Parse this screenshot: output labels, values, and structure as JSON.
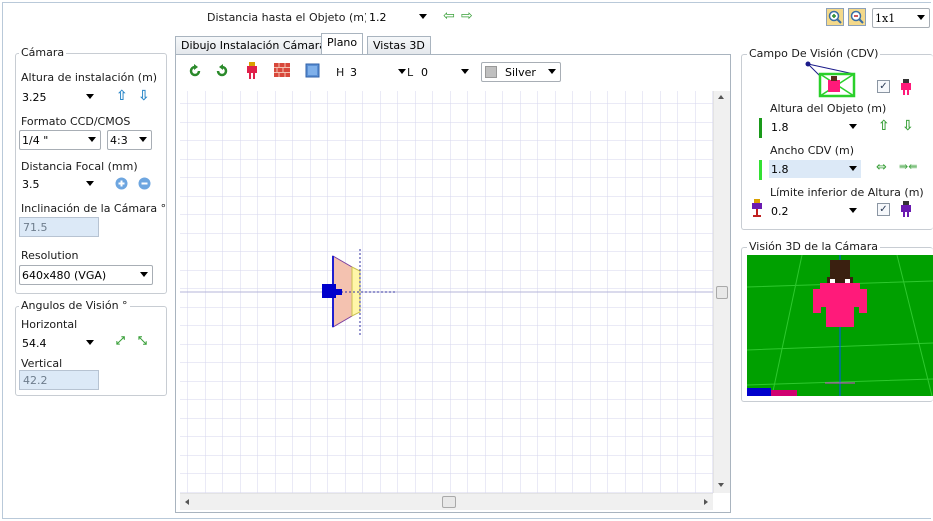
{
  "top": {
    "distance_label": "Distancia hasta el Objeto (m)",
    "distance_value": "1.2",
    "layout_value": "1x1"
  },
  "tabs": [
    {
      "label": "Dibujo Instalación Cámara"
    },
    {
      "label": "Plano"
    },
    {
      "label": "Vistas 3D"
    }
  ],
  "camera": {
    "group_title": "Cámara",
    "height_label": "Altura de instalación (m)",
    "height_value": "3.25",
    "ccd_label": "Formato CCD/CMOS",
    "ccd_value": "1/4 \"",
    "aspect_value": "4:3",
    "focal_label": "Distancia Focal (mm)",
    "focal_value": "3.5",
    "tilt_label": "Inclinación de la Cámara °",
    "tilt_value": "71.5",
    "resolution_label": "Resolution",
    "resolution_value": "640x480 (VGA)"
  },
  "angles": {
    "group_title": "Angulos de Visión °",
    "horizontal_label": "Horizontal",
    "horizontal_value": "54.4",
    "vertical_label": "Vertical",
    "vertical_value": "42.2"
  },
  "toolbar": {
    "h_label": "H",
    "h_value": "3",
    "l_label": "L",
    "l_value": "0",
    "color_value": "Silver"
  },
  "cdv": {
    "group_title": "Campo De Visión (CDV)",
    "object_height_label": "Altura del Objeto (m)",
    "object_height_value": "1.8",
    "width_label": "Ancho CDV (m)",
    "width_value": "1.8",
    "lower_limit_label": "Límite inferior de Altura (m)",
    "lower_limit_value": "0.2"
  },
  "view3d": {
    "group_title": "Visión 3D de la Cámara"
  },
  "colors": {
    "grid_line": "#d6d6ee",
    "scene_green": "#00a000",
    "figure_pink": "#ff1a7a",
    "camera_blue": "#0000cc"
  }
}
